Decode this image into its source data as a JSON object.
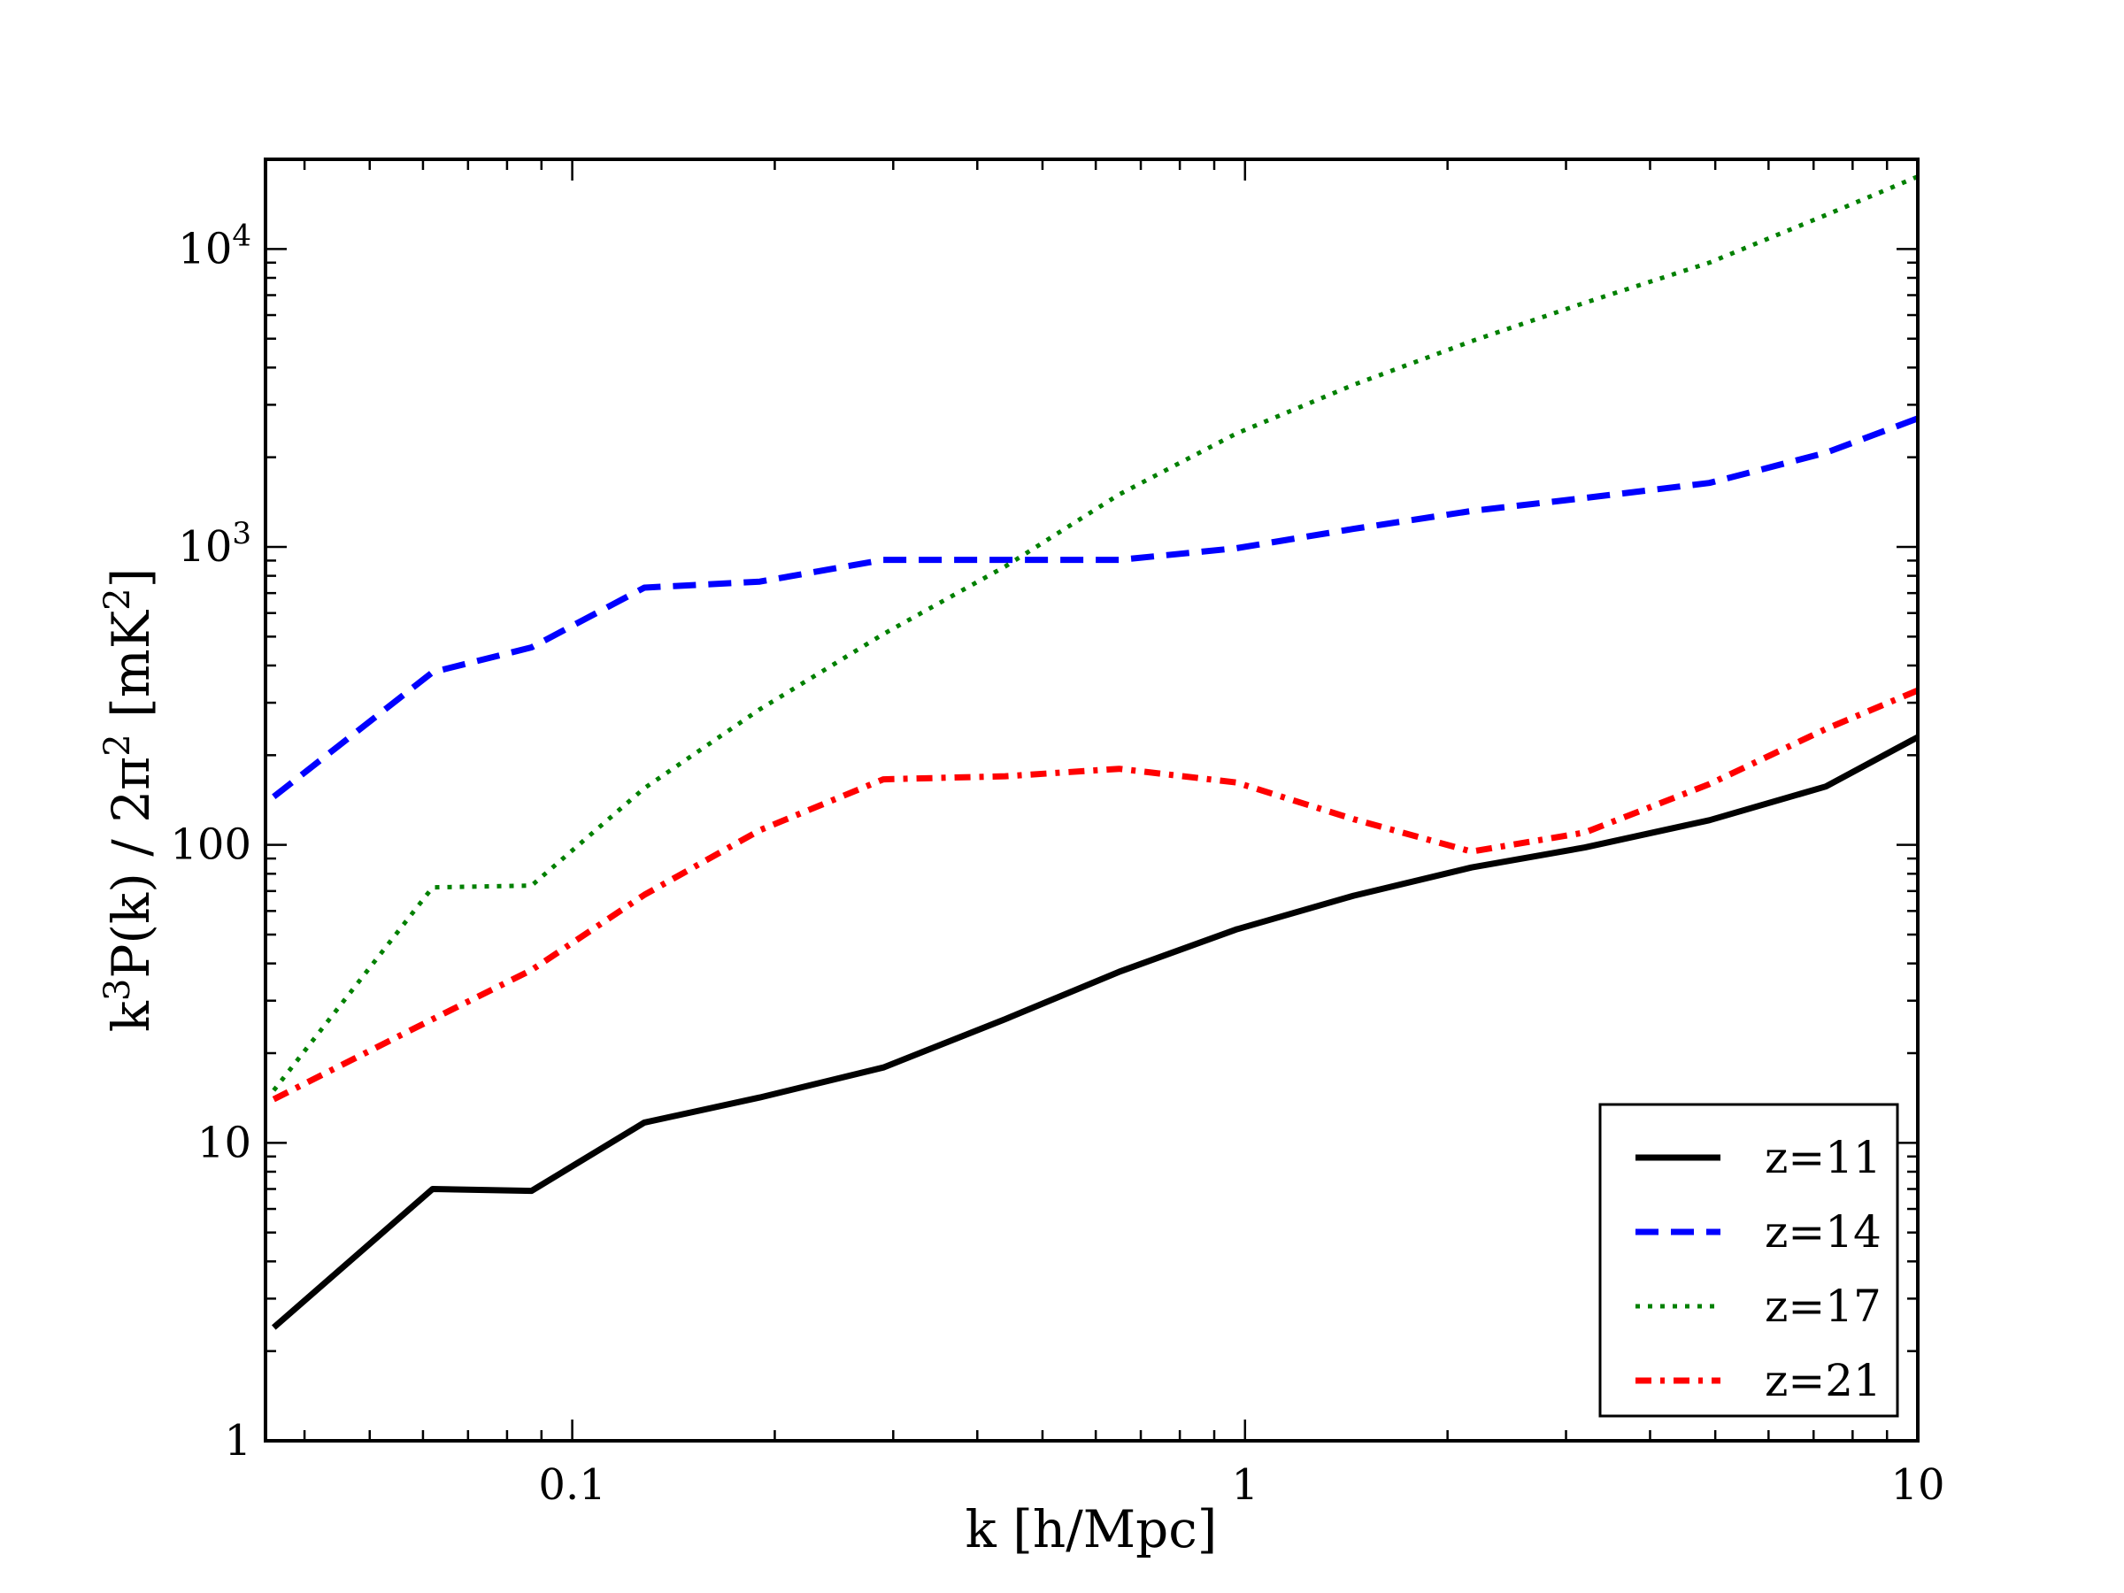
{
  "chart_data": {
    "type": "line",
    "title": "",
    "xlabel": "k [h/Mpc]",
    "ylabel_parts": {
      "k": "k",
      "exp3": "3",
      "pk": "P(k) / 2π",
      "exp2": "2",
      "unit_open": " [mK",
      "unit_exp": "2",
      "unit_close": "]"
    },
    "xscale": "log",
    "yscale": "log",
    "xlim": [
      0.035,
      10
    ],
    "ylim": [
      1,
      20000
    ],
    "x_tick_labels": [
      {
        "value": 0.1,
        "label": "0.1"
      },
      {
        "value": 1,
        "label": "1"
      },
      {
        "value": 10,
        "label": "10"
      }
    ],
    "y_tick_labels": [
      {
        "value": 1,
        "label": "1",
        "exp": ""
      },
      {
        "value": 10,
        "label": "10",
        "exp": ""
      },
      {
        "value": 100,
        "label": "100",
        "exp": ""
      },
      {
        "value": 1000,
        "label": "10",
        "exp": "3"
      },
      {
        "value": 10000,
        "label": "10",
        "exp": "4"
      }
    ],
    "legend_position": "bottom-right",
    "series": [
      {
        "name": "z=11",
        "color": "#000000",
        "style": "solid",
        "x": [
          0.036,
          0.062,
          0.087,
          0.128,
          0.19,
          0.29,
          0.44,
          0.65,
          0.97,
          1.45,
          2.17,
          3.2,
          4.9,
          7.3,
          10
        ],
        "y": [
          2.4,
          7.0,
          6.9,
          11.7,
          14.2,
          17.9,
          26.0,
          37.5,
          52.0,
          67.5,
          84.0,
          98.0,
          121.0,
          157.0,
          230.0
        ]
      },
      {
        "name": "z=14",
        "color": "#0000ff",
        "style": "dashed",
        "x": [
          0.036,
          0.062,
          0.087,
          0.128,
          0.19,
          0.29,
          0.44,
          0.65,
          0.97,
          1.45,
          2.17,
          3.2,
          4.9,
          7.3,
          10
        ],
        "y": [
          145,
          380,
          460,
          730,
          765,
          905,
          905,
          905,
          990,
          1150,
          1320,
          1460,
          1640,
          2070,
          2700
        ]
      },
      {
        "name": "z=17",
        "color": "#008000",
        "style": "dotted",
        "x": [
          0.036,
          0.062,
          0.087,
          0.128,
          0.19,
          0.29,
          0.44,
          0.65,
          0.97,
          1.45,
          2.17,
          3.2,
          4.9,
          7.3,
          10
        ],
        "y": [
          15.0,
          72.0,
          73.0,
          155.0,
          285.0,
          510.0,
          860.0,
          1500.0,
          2400.0,
          3500.0,
          4900.0,
          6600.0,
          9000.0,
          13000.0,
          17500.0
        ]
      },
      {
        "name": "z=21",
        "color": "#ff0000",
        "style": "dashdot",
        "x": [
          0.036,
          0.062,
          0.087,
          0.128,
          0.19,
          0.29,
          0.44,
          0.65,
          0.97,
          1.45,
          2.17,
          3.2,
          4.9,
          7.3,
          10
        ],
        "y": [
          14.0,
          26.0,
          38.0,
          68.0,
          112.0,
          166.0,
          170.0,
          180.0,
          162.0,
          122.0,
          95.0,
          110.0,
          160.0,
          245.0,
          330.0
        ]
      }
    ]
  }
}
